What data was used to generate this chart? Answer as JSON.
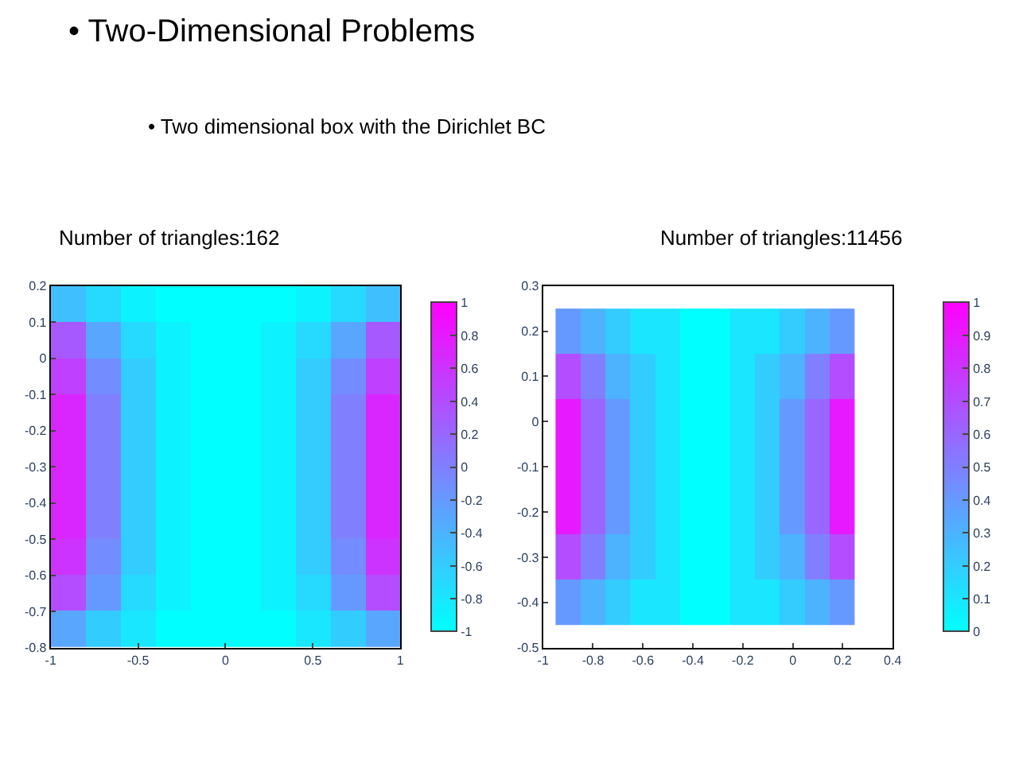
{
  "chart_data": [
    {
      "type": "heatmap",
      "title": "• Two-Dimensional Problems",
      "subtitle": "• Two dimensional box with the Dirichlet BC",
      "annotations": [
        "Number of triangles:162"
      ],
      "x": [
        -0.9,
        -0.7,
        -0.5,
        -0.3,
        -0.1,
        0.1,
        0.3,
        0.5,
        0.7,
        0.9
      ],
      "y": [
        0.15,
        0.05,
        -0.05,
        -0.15,
        -0.25,
        -0.35,
        -0.45,
        -0.55,
        -0.65,
        -0.75
      ],
      "cells": [
        [
          -0.5,
          -0.7,
          -0.9,
          -1,
          -1,
          -1,
          -1,
          -0.9,
          -0.7,
          -0.5
        ],
        [
          0.3,
          -0.3,
          -0.7,
          -0.9,
          -1,
          -1,
          -0.9,
          -0.7,
          -0.3,
          0.3
        ],
        [
          0.5,
          -0.1,
          -0.6,
          -0.9,
          -1,
          -1,
          -0.9,
          -0.6,
          -0.1,
          0.5
        ],
        [
          0.7,
          0,
          -0.6,
          -0.9,
          -1,
          -1,
          -0.9,
          -0.6,
          0,
          0.7
        ],
        [
          0.7,
          0,
          -0.6,
          -0.9,
          -1,
          -1,
          -0.9,
          -0.6,
          0,
          0.7
        ],
        [
          0.7,
          0,
          -0.6,
          -0.9,
          -1,
          -1,
          -0.9,
          -0.6,
          0,
          0.7
        ],
        [
          0.7,
          0,
          -0.6,
          -0.9,
          -1,
          -1,
          -0.9,
          -0.6,
          0,
          0.7
        ],
        [
          0.6,
          -0.1,
          -0.6,
          -0.9,
          -1,
          -1,
          -0.9,
          -0.6,
          -0.1,
          0.6
        ],
        [
          0.4,
          -0.2,
          -0.7,
          -0.9,
          -1,
          -1,
          -0.9,
          -0.7,
          -0.2,
          0.4
        ],
        [
          -0.3,
          -0.6,
          -0.8,
          -1,
          -1,
          -1,
          -1,
          -0.8,
          -0.6,
          -0.3
        ]
      ],
      "colors": [
        "#00ffff",
        "#ff00ff"
      ],
      "xlim": [
        -1,
        1
      ],
      "xticks": [
        -1,
        -0.5,
        0,
        0.5,
        1
      ],
      "ylim": [
        -0.8,
        0.2
      ],
      "yticks": [
        -0.8,
        -0.7,
        -0.6,
        -0.5,
        -0.4,
        -0.3,
        -0.2,
        -0.1,
        0,
        0.1,
        0.2
      ],
      "clim": [
        -1,
        1
      ],
      "cticks": [
        -1,
        -0.8,
        -0.6,
        -0.4,
        -0.2,
        0,
        0.2,
        0.4,
        0.6,
        0.8,
        1
      ]
    },
    {
      "type": "heatmap",
      "annotations": [
        "Number of triangles:11456"
      ],
      "x": [
        -0.9,
        -0.8,
        -0.7,
        -0.6,
        -0.5,
        -0.4,
        -0.3,
        -0.2,
        -0.1,
        0,
        0.1,
        0.2
      ],
      "y": [
        0.2,
        0.1,
        0,
        -0.1,
        -0.2,
        -0.3,
        -0.4
      ],
      "cells": [
        [
          0.4,
          0.3,
          0.2,
          0.1,
          0.1,
          0,
          0,
          0.1,
          0.1,
          0.2,
          0.3,
          0.4
        ],
        [
          0.7,
          0.5,
          0.3,
          0.2,
          0.1,
          0,
          0,
          0.1,
          0.2,
          0.3,
          0.5,
          0.7
        ],
        [
          0.9,
          0.6,
          0.4,
          0.2,
          0.1,
          0,
          0,
          0.1,
          0.2,
          0.4,
          0.6,
          0.9
        ],
        [
          0.9,
          0.6,
          0.4,
          0.2,
          0.1,
          0,
          0,
          0.1,
          0.2,
          0.4,
          0.6,
          0.9
        ],
        [
          0.9,
          0.6,
          0.4,
          0.2,
          0.1,
          0,
          0,
          0.1,
          0.2,
          0.4,
          0.6,
          0.9
        ],
        [
          0.7,
          0.5,
          0.3,
          0.2,
          0.1,
          0,
          0,
          0.1,
          0.2,
          0.3,
          0.5,
          0.7
        ],
        [
          0.4,
          0.3,
          0.2,
          0.1,
          0.1,
          0,
          0,
          0.1,
          0.1,
          0.2,
          0.3,
          0.4
        ]
      ],
      "colors": [
        "#00ffff",
        "#ff00ff"
      ],
      "xlim": [
        -1,
        0.4
      ],
      "xticks": [
        -1,
        -0.8,
        -0.6,
        -0.4,
        -0.2,
        0,
        0.2,
        0.4
      ],
      "ylim": [
        -0.5,
        0.3
      ],
      "yticks": [
        -0.5,
        -0.4,
        -0.3,
        -0.2,
        -0.1,
        0,
        0.1,
        0.2,
        0.3
      ],
      "clim": [
        0,
        1
      ],
      "cticks": [
        0,
        0.1,
        0.2,
        0.3,
        0.4,
        0.5,
        0.6,
        0.7,
        0.8,
        0.9,
        1
      ]
    }
  ]
}
